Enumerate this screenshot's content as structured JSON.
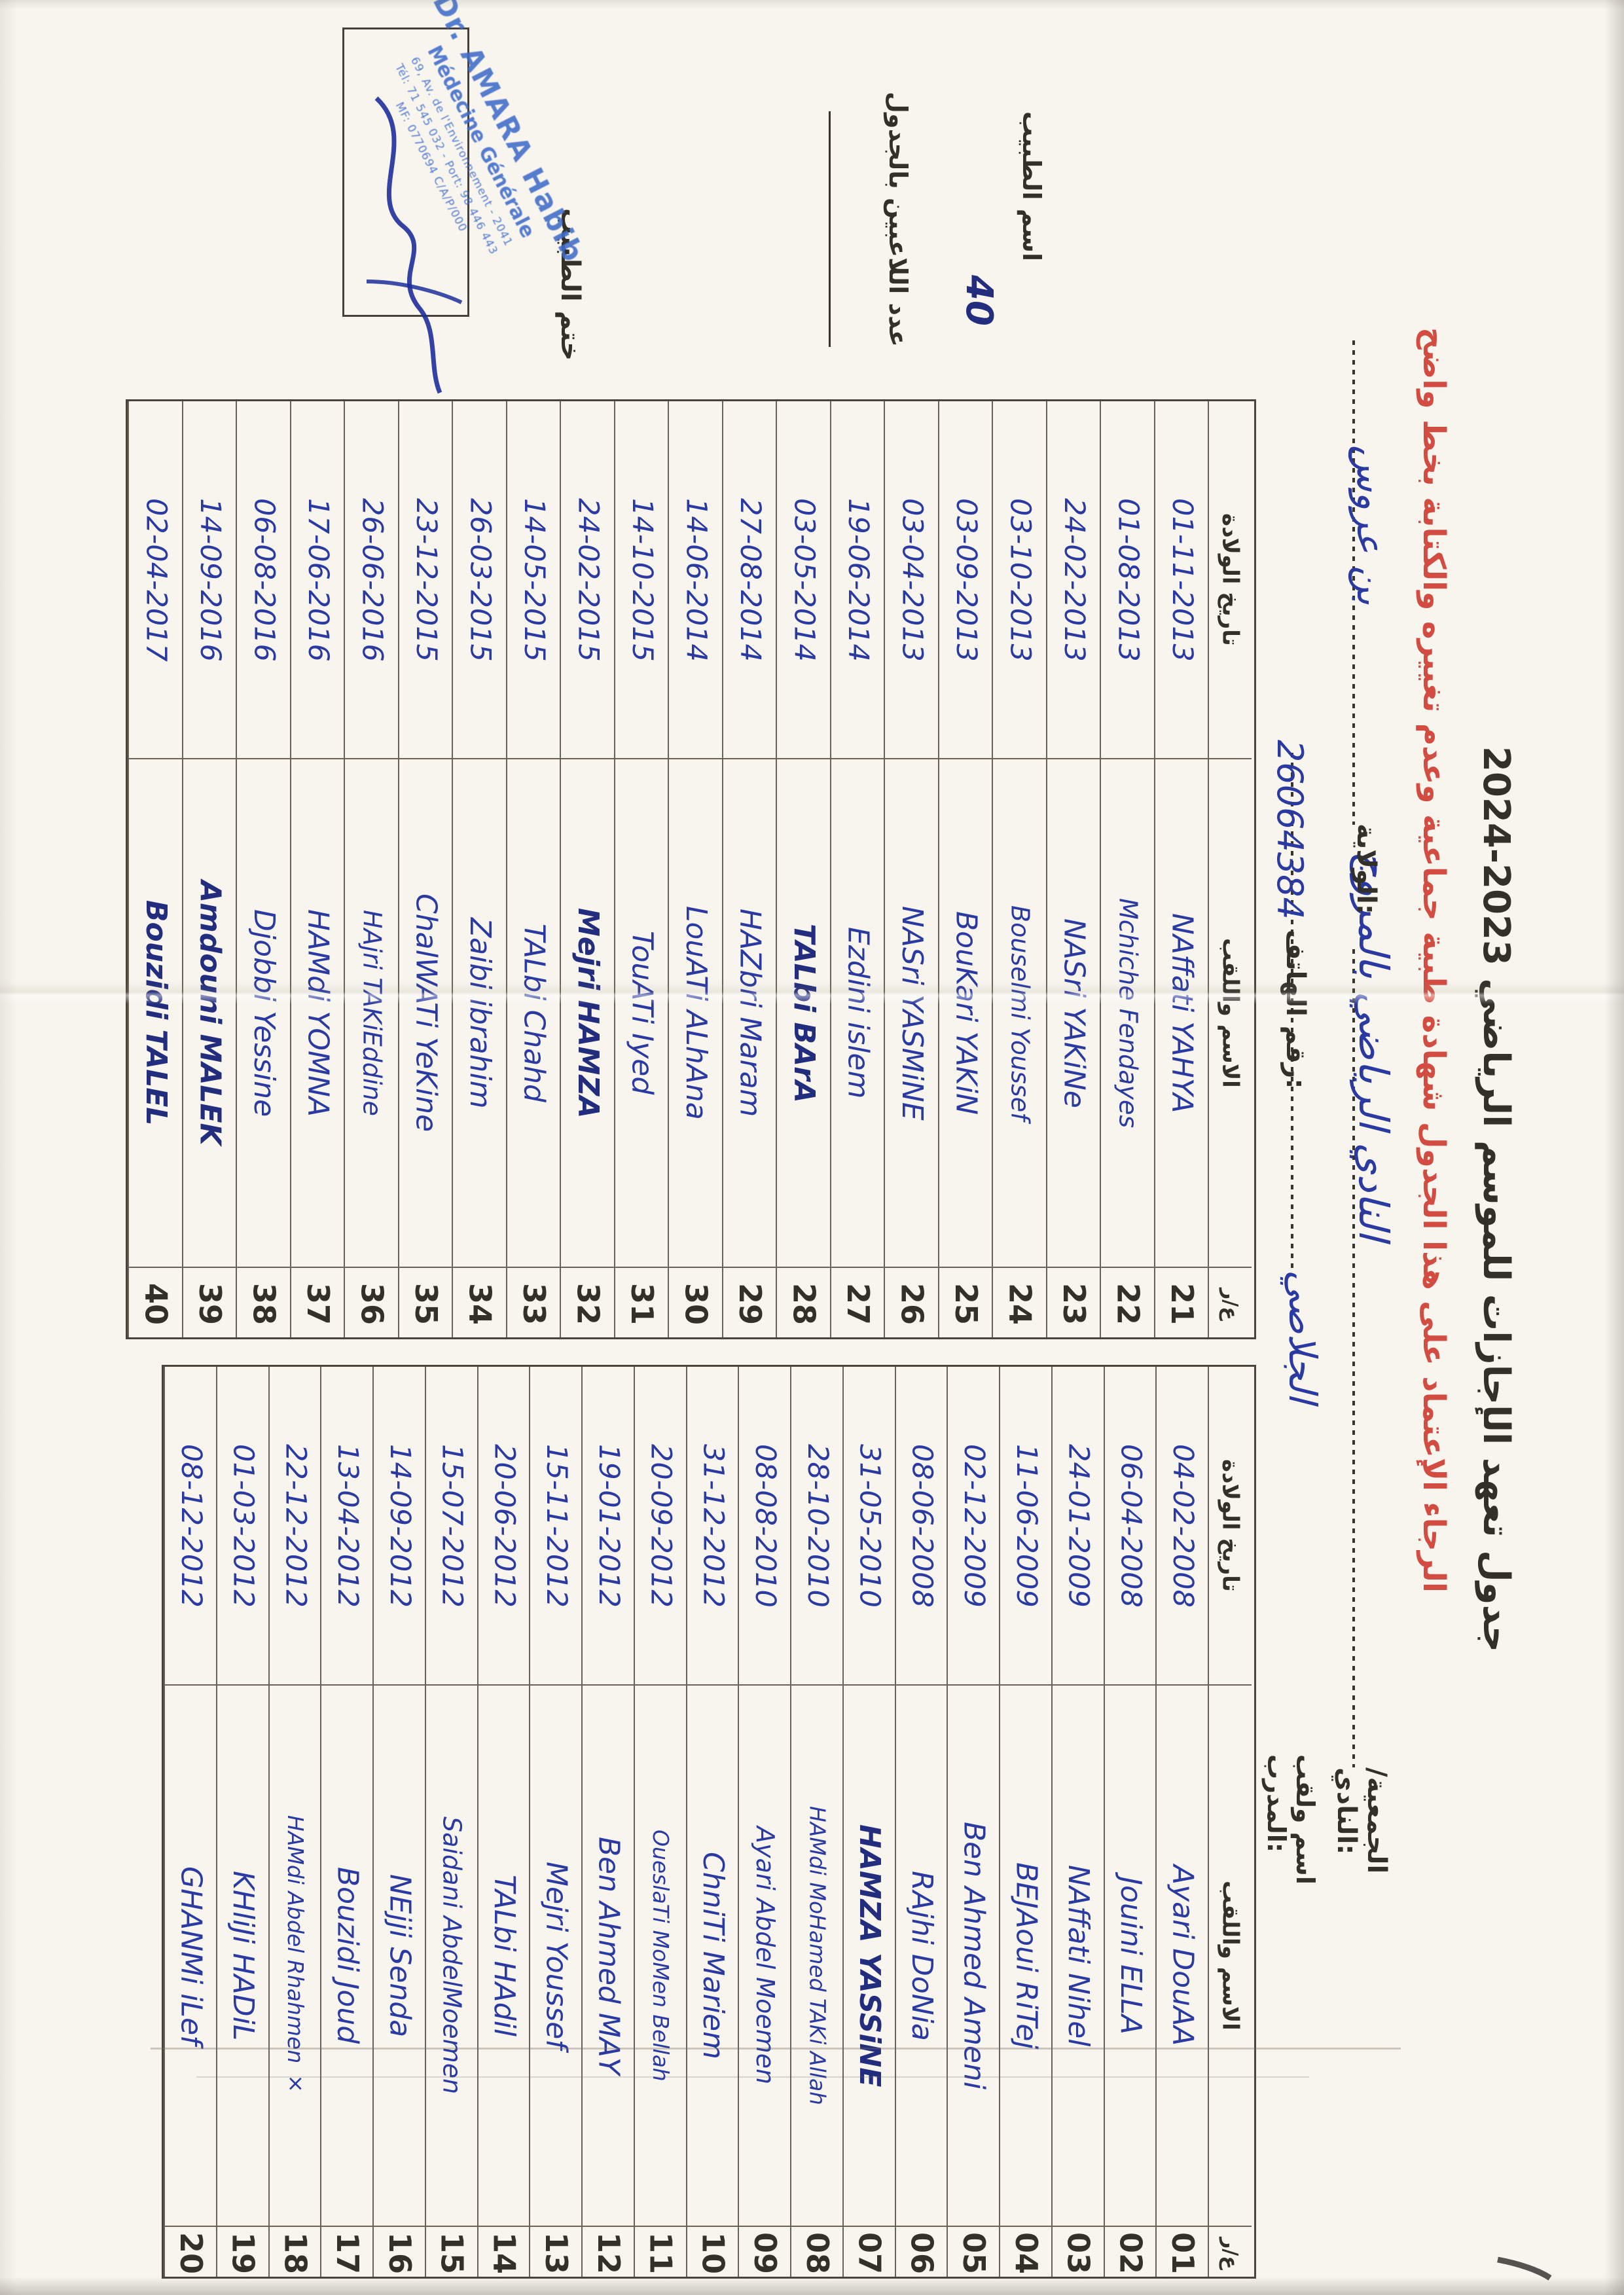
{
  "document": {
    "title": "جدول تعهد الإجازات للموسم الرياضي 2023-2024",
    "season": "2023-2024",
    "instruction_red": "الرجاء الإعتماد على هذا الجدول شهادة طبية جماعية وعدم تغييره والكتابة بخط واضح",
    "orientation_note": "scanned rotated 90° clockwise"
  },
  "fields": {
    "club_label": "الجمعية/النادي:",
    "club_value": "النادي الرياضي بالمروج",
    "wilaya_label": "الولاية:",
    "wilaya_value": "بن عروس",
    "coach_label": "اسم ولقب المدرب:",
    "coach_value": "الجلاصي",
    "phone_label": "رقم الهاتف:",
    "phone_value": "26064384",
    "players_count_label": "عدد اللاعبين بالجدول",
    "players_count_value": "40",
    "doctor_name_label": "اسم الطبيب",
    "doctor_stamp_label": "ختم الطبيب"
  },
  "table_headers": {
    "number": "ع/ر",
    "name": "الاسم واللقب",
    "dob": "تاريخ الولادة"
  },
  "table_21_40": {
    "rows": [
      {
        "n": "21",
        "name": "NAffati YAHYA",
        "dob": "01-11-2013"
      },
      {
        "n": "22",
        "name": "Mchiche Fendayes",
        "dob": "01-08-2013"
      },
      {
        "n": "23",
        "name": "NASri YAKiNe",
        "dob": "24-02-2013"
      },
      {
        "n": "24",
        "name": "Bouselmi Youssef",
        "dob": "03-10-2013"
      },
      {
        "n": "25",
        "name": "BouKari YAKiN",
        "dob": "03-09-2013"
      },
      {
        "n": "26",
        "name": "NASri YASMiNE",
        "dob": "03-04-2013"
      },
      {
        "n": "27",
        "name": "Ezdini islem",
        "dob": "19-06-2014"
      },
      {
        "n": "28",
        "name": "TALbi BArA",
        "dob": "03-05-2014"
      },
      {
        "n": "29",
        "name": "HAZbri Maram",
        "dob": "27-08-2014"
      },
      {
        "n": "30",
        "name": "LouATi ALhAna",
        "dob": "14-06-2014"
      },
      {
        "n": "31",
        "name": "TouATi Iyed",
        "dob": "14-10-2015"
      },
      {
        "n": "32",
        "name": "Mejri HAMZA",
        "dob": "24-02-2015"
      },
      {
        "n": "33",
        "name": "TALbi Chahd",
        "dob": "14-05-2015"
      },
      {
        "n": "34",
        "name": "Zaibi ibrahim",
        "dob": "26-03-2015"
      },
      {
        "n": "35",
        "name": "ChalWATi YeKine",
        "dob": "23-12-2015"
      },
      {
        "n": "36",
        "name": "HAjri TAKiEddine",
        "dob": "26-06-2016"
      },
      {
        "n": "37",
        "name": "HAMdi YOMNA",
        "dob": "17-06-2016"
      },
      {
        "n": "38",
        "name": "Djobbi Yessine",
        "dob": "06-08-2016"
      },
      {
        "n": "39",
        "name": "Amdouni MALEK",
        "dob": "14-09-2016"
      },
      {
        "n": "40",
        "name": "Bouzidi TALEL",
        "dob": "02-04-2017"
      }
    ]
  },
  "table_01_20": {
    "rows": [
      {
        "n": "01",
        "name": "Ayari DouAA",
        "dob": "04-02-2008"
      },
      {
        "n": "02",
        "name": "Jouini ELLA",
        "dob": "06-04-2008"
      },
      {
        "n": "03",
        "name": "NAffati Nihel",
        "dob": "24-01-2009"
      },
      {
        "n": "04",
        "name": "BEJAoui RiTej",
        "dob": "11-06-2009"
      },
      {
        "n": "05",
        "name": "Ben Ahmed Ameni",
        "dob": "02-12-2009"
      },
      {
        "n": "06",
        "name": "RAjhi DoNia",
        "dob": "08-06-2008"
      },
      {
        "n": "07",
        "name": "HAMZA YASSiNE",
        "dob": "31-05-2010"
      },
      {
        "n": "08",
        "name": "HAMdi MoHamed TAKi Allah",
        "dob": "28-10-2010"
      },
      {
        "n": "09",
        "name": "Ayari Abdel Moemen",
        "dob": "08-08-2010"
      },
      {
        "n": "10",
        "name": "ChniTi Mariem",
        "dob": "31-12-2012"
      },
      {
        "n": "11",
        "name": "OueslaTi MoMen Bellah",
        "dob": "20-09-2012"
      },
      {
        "n": "12",
        "name": "Ben Ahmed MAY",
        "dob": "19-01-2012"
      },
      {
        "n": "13",
        "name": "Mejri Youssef",
        "dob": "15-11-2012"
      },
      {
        "n": "14",
        "name": "TALbi HAdil",
        "dob": "20-06-2012"
      },
      {
        "n": "15",
        "name": "Saidani AbdelMoemen",
        "dob": "15-07-2012"
      },
      {
        "n": "16",
        "name": "NEjji Senda",
        "dob": "14-09-2012"
      },
      {
        "n": "17",
        "name": "Bouzidi Joud",
        "dob": "13-04-2012"
      },
      {
        "n": "18",
        "name": "HAMdi Abdel Rhahmen ×",
        "dob": "22-12-2012"
      },
      {
        "n": "19",
        "name": "KHliJi HADiL",
        "dob": "01-03-2012"
      },
      {
        "n": "20",
        "name": "GHANMi iLef",
        "dob": "08-12-2012"
      }
    ]
  },
  "stamp": {
    "line1": "Dr. AMARA Habib",
    "line2": "Médecine Générale",
    "line3": "69, Av. de l'Environnement - 2041",
    "line4": "Tél: 71 545 032 - Port: 98 446 443",
    "line5": "MF: 0770694 C/A/P/000"
  },
  "colors": {
    "paper": "#f7f5ee",
    "ink_blue": "#2b3aa0",
    "ink_navy": "#232d7d",
    "typed_black": "#33302a",
    "red_text": "#d34c41",
    "stamp_blue": "#3f6cc9",
    "table_line": "#6b6157"
  }
}
